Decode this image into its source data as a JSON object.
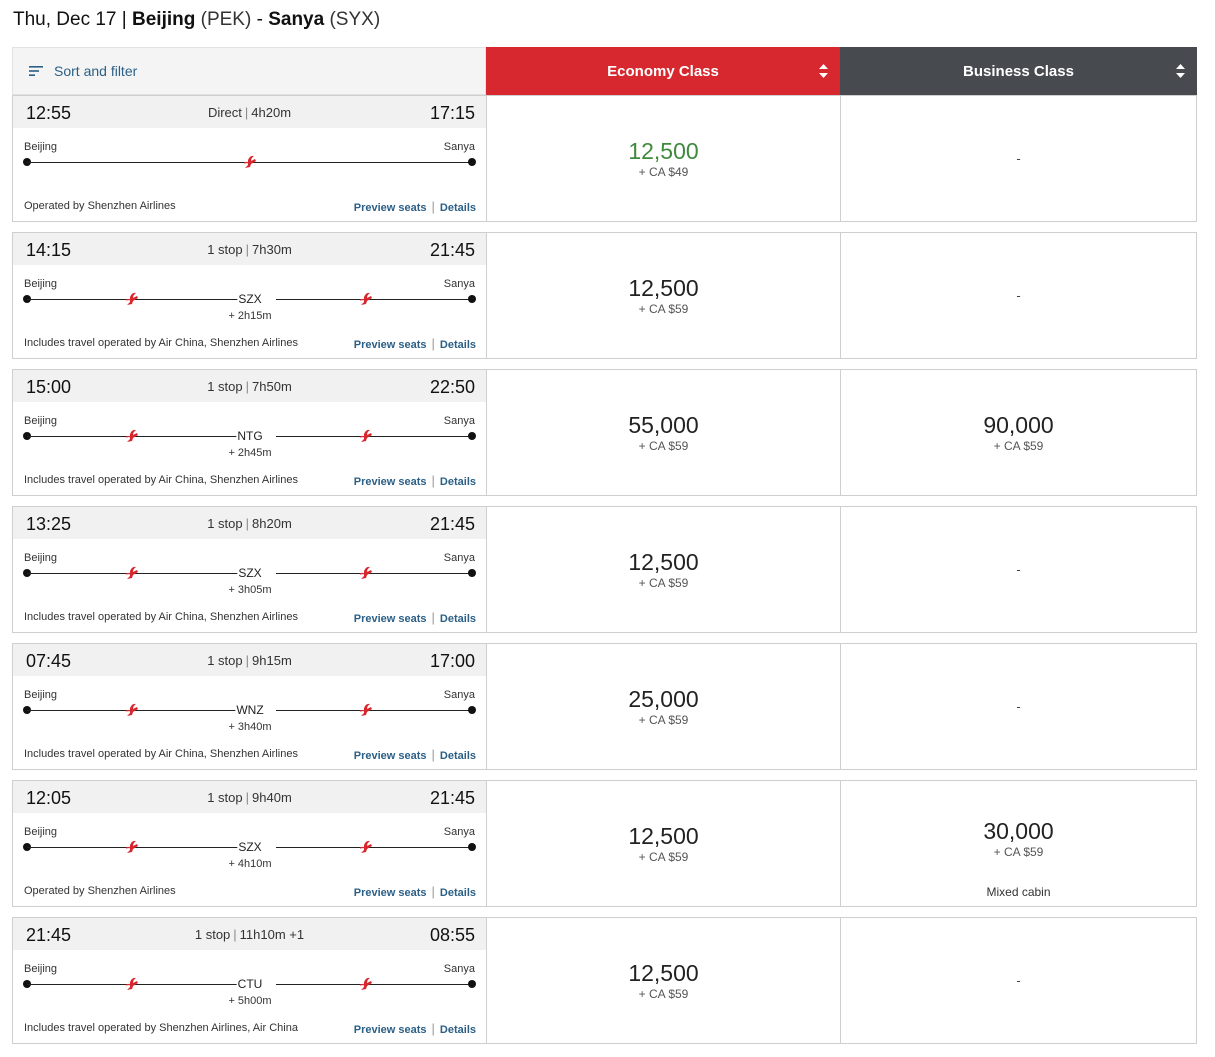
{
  "header": {
    "date": "Thu, Dec 17",
    "separator": "|",
    "origin_city": "Beijing",
    "origin_code": "(PEK)",
    "dash": "-",
    "dest_city": "Sanya",
    "dest_code": "(SYX)"
  },
  "toolbar": {
    "sort_filter_label": "Sort and filter",
    "economy_label": "Economy Class",
    "business_label": "Business Class"
  },
  "colors": {
    "economy_header": "#d7282f",
    "business_header": "#474b50",
    "link": "#2b5f86",
    "best_price": "#3f8a3c"
  },
  "flights": [
    {
      "dep": "12:55",
      "arr": "17:15",
      "stops": "Direct",
      "duration": "4h20m",
      "from": "Beijing",
      "to": "Sanya",
      "stop_code": "",
      "layover": "",
      "operated": "Operated by Shenzhen Airlines",
      "preview": "Preview seats",
      "details": "Details",
      "eco_points": "12,500",
      "eco_fee": "+ CA $49",
      "bus_points": "",
      "bus_fee": "",
      "bus_dash": "-",
      "bus_note": ""
    },
    {
      "dep": "14:15",
      "arr": "21:45",
      "stops": "1 stop",
      "duration": "7h30m",
      "from": "Beijing",
      "to": "Sanya",
      "stop_code": "SZX",
      "layover": "+ 2h15m",
      "operated": "Includes travel operated by Air China, Shenzhen Airlines",
      "preview": "Preview seats",
      "details": "Details",
      "eco_points": "12,500",
      "eco_fee": "+ CA $59",
      "bus_points": "",
      "bus_fee": "",
      "bus_dash": "-",
      "bus_note": ""
    },
    {
      "dep": "15:00",
      "arr": "22:50",
      "stops": "1 stop",
      "duration": "7h50m",
      "from": "Beijing",
      "to": "Sanya",
      "stop_code": "NTG",
      "layover": "+ 2h45m",
      "operated": "Includes travel operated by Air China, Shenzhen Airlines",
      "preview": "Preview seats",
      "details": "Details",
      "eco_points": "55,000",
      "eco_fee": "+ CA $59",
      "bus_points": "90,000",
      "bus_fee": "+ CA $59",
      "bus_dash": "",
      "bus_note": ""
    },
    {
      "dep": "13:25",
      "arr": "21:45",
      "stops": "1 stop",
      "duration": "8h20m",
      "from": "Beijing",
      "to": "Sanya",
      "stop_code": "SZX",
      "layover": "+ 3h05m",
      "operated": "Includes travel operated by Air China, Shenzhen Airlines",
      "preview": "Preview seats",
      "details": "Details",
      "eco_points": "12,500",
      "eco_fee": "+ CA $59",
      "bus_points": "",
      "bus_fee": "",
      "bus_dash": "-",
      "bus_note": ""
    },
    {
      "dep": "07:45",
      "arr": "17:00",
      "stops": "1 stop",
      "duration": "9h15m",
      "from": "Beijing",
      "to": "Sanya",
      "stop_code": "WNZ",
      "layover": "+ 3h40m",
      "operated": "Includes travel operated by Air China, Shenzhen Airlines",
      "preview": "Preview seats",
      "details": "Details",
      "eco_points": "25,000",
      "eco_fee": "+ CA $59",
      "bus_points": "",
      "bus_fee": "",
      "bus_dash": "-",
      "bus_note": ""
    },
    {
      "dep": "12:05",
      "arr": "21:45",
      "stops": "1 stop",
      "duration": "9h40m",
      "from": "Beijing",
      "to": "Sanya",
      "stop_code": "SZX",
      "layover": "+ 4h10m",
      "operated": "Operated by Shenzhen Airlines",
      "preview": "Preview seats",
      "details": "Details",
      "eco_points": "12,500",
      "eco_fee": "+ CA $59",
      "bus_points": "30,000",
      "bus_fee": "+ CA $59",
      "bus_dash": "",
      "bus_note": "Mixed cabin"
    },
    {
      "dep": "21:45",
      "arr": "08:55",
      "stops": "1 stop",
      "duration": "11h10m +1",
      "from": "Beijing",
      "to": "Sanya",
      "stop_code": "CTU",
      "layover": "+ 5h00m",
      "operated": "Includes travel operated by Shenzhen Airlines, Air China",
      "preview": "Preview seats",
      "details": "Details",
      "eco_points": "12,500",
      "eco_fee": "+ CA $59",
      "bus_points": "",
      "bus_fee": "",
      "bus_dash": "-",
      "bus_note": ""
    }
  ]
}
